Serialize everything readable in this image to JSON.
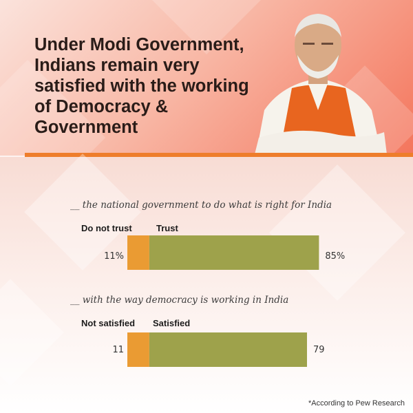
{
  "header": {
    "title": "Under Modi Government, Indians remain very satisfied with the working of Democracy & Government"
  },
  "colors": {
    "accent": "#ee7d2b",
    "negative": "#ea9b33",
    "positive": "#9ea24b"
  },
  "chart_data": [
    {
      "type": "bar",
      "title": "__ the national government to do what is right for India",
      "negative_label": "Do not trust",
      "positive_label": "Trust",
      "negative_value": 11,
      "positive_value": 85,
      "negative_display": "11%",
      "positive_display": "85%",
      "unit": "%"
    },
    {
      "type": "bar",
      "title": "__ with the way democracy is working in India",
      "negative_label": "Not satisfied",
      "positive_label": "Satisfied",
      "negative_value": 11,
      "positive_value": 79,
      "negative_display": "11",
      "positive_display": "79",
      "unit": "%"
    }
  ],
  "footnote": "*According to Pew Research"
}
